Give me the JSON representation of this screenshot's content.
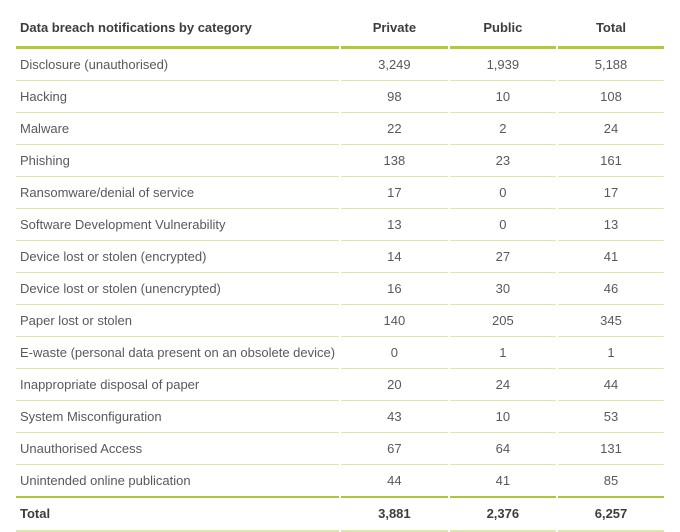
{
  "title": "Data breach notifications by category",
  "colors": {
    "accent_green": "#abcc38",
    "pale_row_line": "#dce8a3",
    "header_text": "#3d3d3c",
    "body_text": "#58595b"
  },
  "table": {
    "header": {
      "category_label": "Data breach notifications by category",
      "col_private": "Private",
      "col_public": "Public",
      "col_total": "Total"
    },
    "rows": [
      {
        "category": "Disclosure (unauthorised)",
        "private": "3,249",
        "public": "1,939",
        "total": "5,188"
      },
      {
        "category": "Hacking",
        "private": "98",
        "public": "10",
        "total": "108"
      },
      {
        "category": "Malware",
        "private": "22",
        "public": "2",
        "total": "24"
      },
      {
        "category": "Phishing",
        "private": "138",
        "public": "23",
        "total": "161"
      },
      {
        "category": "Ransomware/denial of service",
        "private": "17",
        "public": "0",
        "total": "17"
      },
      {
        "category": "Software Development Vulnerability",
        "private": "13",
        "public": "0",
        "total": "13"
      },
      {
        "category": "Device lost or stolen (encrypted)",
        "private": "14",
        "public": "27",
        "total": "41"
      },
      {
        "category": "Device lost or stolen (unencrypted)",
        "private": "16",
        "public": "30",
        "total": "46"
      },
      {
        "category": "Paper lost or stolen",
        "private": "140",
        "public": "205",
        "total": "345"
      },
      {
        "category": "E-waste (personal data present on an obsolete device)",
        "private": "0",
        "public": "1",
        "total": "1"
      },
      {
        "category": "Inappropriate disposal of paper",
        "private": "20",
        "public": "24",
        "total": "44"
      },
      {
        "category": "System Misconfiguration",
        "private": "43",
        "public": "10",
        "total": "53"
      },
      {
        "category": "Unauthorised Access",
        "private": "67",
        "public": "64",
        "total": "131"
      },
      {
        "category": "Unintended online publication",
        "private": "44",
        "public": "41",
        "total": "85"
      }
    ],
    "footer": {
      "label": "Total",
      "private": "3,881",
      "public": "2,376",
      "total": "6,257"
    }
  },
  "chart_data": {
    "type": "table",
    "title": "Data breach notifications by category",
    "columns": [
      "Data breach notifications by category",
      "Private",
      "Public",
      "Total"
    ],
    "rows": [
      [
        "Disclosure (unauthorised)",
        3249,
        1939,
        5188
      ],
      [
        "Hacking",
        98,
        10,
        108
      ],
      [
        "Malware",
        22,
        2,
        24
      ],
      [
        "Phishing",
        138,
        23,
        161
      ],
      [
        "Ransomware/denial of service",
        17,
        0,
        17
      ],
      [
        "Software Development Vulnerability",
        13,
        0,
        13
      ],
      [
        "Device lost or stolen (encrypted)",
        14,
        27,
        41
      ],
      [
        "Device lost or stolen (unencrypted)",
        16,
        30,
        46
      ],
      [
        "Paper lost or stolen",
        140,
        205,
        345
      ],
      [
        "E-waste (personal data present on an obsolete device)",
        0,
        1,
        1
      ],
      [
        "Inappropriate disposal of paper",
        20,
        24,
        44
      ],
      [
        "System Misconfiguration",
        43,
        10,
        53
      ],
      [
        "Unauthorised Access",
        67,
        64,
        131
      ],
      [
        "Unintended online publication",
        44,
        41,
        85
      ]
    ],
    "footer_row": [
      "Total",
      3881,
      2376,
      6257
    ]
  }
}
